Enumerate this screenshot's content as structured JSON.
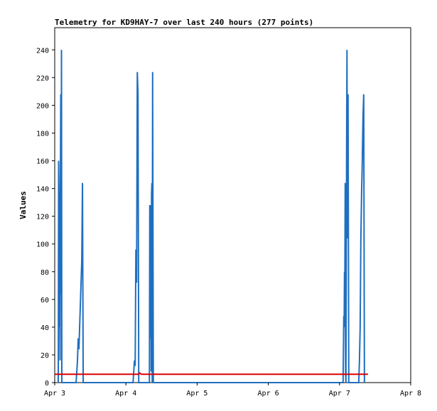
{
  "chart_data": {
    "type": "line",
    "title": "Telemetry for KD9HAY-7 over last 240 hours (277 points)",
    "xlabel": "",
    "ylabel": "Values",
    "xlim": [
      3.0,
      8.0
    ],
    "ylim": [
      0,
      256
    ],
    "x_ticks": [
      {
        "value": 3,
        "label": "Apr 3"
      },
      {
        "value": 4,
        "label": "Apr 4"
      },
      {
        "value": 5,
        "label": "Apr 5"
      },
      {
        "value": 6,
        "label": "Apr 6"
      },
      {
        "value": 7,
        "label": "Apr 7"
      },
      {
        "value": 8,
        "label": "Apr 8"
      }
    ],
    "y_ticks": [
      0,
      20,
      40,
      60,
      80,
      100,
      120,
      140,
      160,
      180,
      200,
      220,
      240
    ],
    "grid": false,
    "series": [
      {
        "color": "#1f6fc0",
        "points": [
          [
            3.05,
            0
          ],
          [
            3.055,
            160
          ],
          [
            3.06,
            136
          ],
          [
            3.065,
            40
          ],
          [
            3.07,
            88
          ],
          [
            3.075,
            16
          ],
          [
            3.08,
            144
          ],
          [
            3.085,
            208
          ],
          [
            3.09,
            64
          ],
          [
            3.095,
            240
          ],
          [
            3.1,
            0
          ],
          [
            3.3,
            0
          ],
          [
            3.32,
            16
          ],
          [
            3.33,
            32
          ],
          [
            3.34,
            24
          ],
          [
            3.35,
            40
          ],
          [
            3.36,
            56
          ],
          [
            3.37,
            72
          ],
          [
            3.38,
            88
          ],
          [
            3.39,
            144
          ],
          [
            3.4,
            0
          ],
          [
            4.1,
            0
          ],
          [
            4.11,
            8
          ],
          [
            4.12,
            16
          ],
          [
            4.13,
            12
          ],
          [
            4.14,
            96
          ],
          [
            4.15,
            72
          ],
          [
            4.16,
            224
          ],
          [
            4.17,
            208
          ],
          [
            4.18,
            0
          ],
          [
            4.33,
            0
          ],
          [
            4.335,
            128
          ],
          [
            4.34,
            32
          ],
          [
            4.345,
            120
          ],
          [
            4.35,
            128
          ],
          [
            4.355,
            8
          ],
          [
            4.36,
            136
          ],
          [
            4.365,
            144
          ],
          [
            4.37,
            0
          ],
          [
            4.375,
            224
          ],
          [
            4.38,
            112
          ],
          [
            4.385,
            0
          ],
          [
            7.05,
            0
          ],
          [
            7.06,
            48
          ],
          [
            7.065,
            40
          ],
          [
            7.07,
            80
          ],
          [
            7.075,
            72
          ],
          [
            7.08,
            144
          ],
          [
            7.085,
            8
          ],
          [
            7.09,
            0
          ],
          [
            7.1,
            176
          ],
          [
            7.105,
            240
          ],
          [
            7.11,
            104
          ],
          [
            7.12,
            208
          ],
          [
            7.13,
            0
          ],
          [
            7.27,
            0
          ],
          [
            7.28,
            16
          ],
          [
            7.29,
            40
          ],
          [
            7.3,
            104
          ],
          [
            7.31,
            136
          ],
          [
            7.32,
            160
          ],
          [
            7.33,
            192
          ],
          [
            7.34,
            208
          ],
          [
            7.35,
            0
          ]
        ]
      },
      {
        "color": "#dd0000",
        "points": [
          [
            3.0,
            6
          ],
          [
            4.18,
            6
          ],
          [
            4.19,
            7
          ],
          [
            4.22,
            6
          ],
          [
            7.4,
            6
          ]
        ]
      }
    ]
  }
}
